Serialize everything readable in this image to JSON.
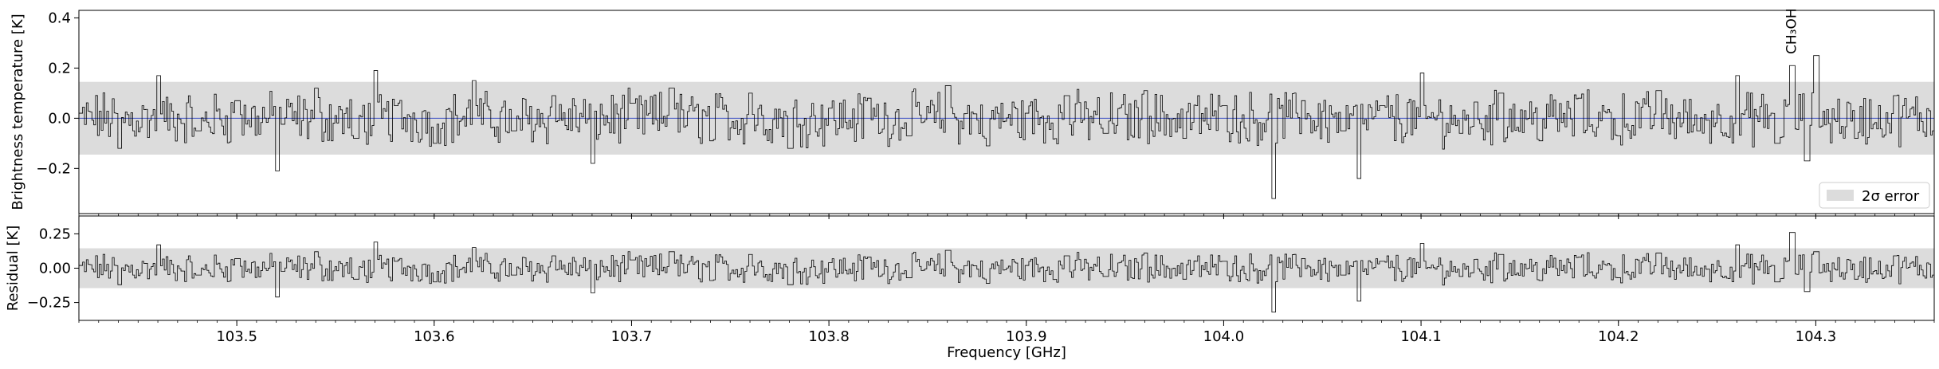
{
  "chart_data": [
    {
      "type": "line",
      "panel": "spectrum",
      "ylabel": "Brightness temperature [K]",
      "xlabel": "",
      "xlim": [
        103.42,
        104.36
      ],
      "ylim": [
        -0.38,
        0.43
      ],
      "yticks": [
        -0.2,
        0.0,
        0.2,
        0.4
      ],
      "ytick_labels": [
        "−0.2",
        "0.0",
        "0.2",
        "0.4"
      ],
      "xticks": [
        103.5,
        103.6,
        103.7,
        103.8,
        103.9,
        104.0,
        104.1,
        104.2,
        104.3
      ],
      "xtick_labels": [
        "103.5",
        "103.6",
        "103.7",
        "103.8",
        "103.9",
        "104.0",
        "104.1",
        "104.2",
        "104.3"
      ],
      "error_band": [
        -0.145,
        0.145
      ],
      "legend": {
        "entries": [
          "2σ error"
        ],
        "placement": "lower-right"
      },
      "annotations": [
        {
          "text": "CH₃OH",
          "x": 104.2875
        }
      ],
      "model_line_color": "#3b4fc4",
      "data_line_color": "#000000",
      "band_color": "#dcdcdc",
      "series": [
        {
          "sample_x": [
            103.42,
            103.44,
            103.46,
            103.48,
            103.5,
            103.52,
            103.54,
            103.56,
            103.57,
            103.58,
            103.6,
            103.62,
            103.64,
            103.66,
            103.68,
            103.7,
            103.72,
            103.74,
            103.76,
            103.78,
            103.8,
            103.82,
            103.84,
            103.86,
            103.88,
            103.9,
            103.92,
            103.94,
            103.96,
            103.98,
            104.0,
            104.025,
            104.04,
            104.06,
            104.068,
            104.08,
            104.1,
            104.12,
            104.14,
            104.16,
            104.18,
            104.2,
            104.22,
            104.24,
            104.26,
            104.28,
            104.2875,
            104.295,
            104.3,
            104.32,
            104.34,
            104.36
          ],
          "y": [
            0.02,
            -0.12,
            0.17,
            -0.05,
            0.07,
            -0.21,
            0.12,
            -0.08,
            0.19,
            0.05,
            -0.1,
            0.15,
            -0.05,
            0.09,
            -0.18,
            0.06,
            0.12,
            -0.09,
            0.1,
            -0.12,
            0.04,
            0.08,
            -0.07,
            0.13,
            -0.11,
            0.02,
            0.09,
            -0.06,
            0.11,
            -0.08,
            0.05,
            -0.32,
            0.07,
            -0.05,
            -0.24,
            0.05,
            0.18,
            -0.06,
            0.1,
            -0.09,
            0.08,
            -0.07,
            0.11,
            -0.05,
            0.17,
            -0.1,
            0.21,
            -0.17,
            0.25,
            -0.08,
            0.09,
            -0.05
          ]
        }
      ]
    },
    {
      "type": "line",
      "panel": "residual",
      "ylabel": "Residual [K]",
      "xlabel": "Frequency [GHz]",
      "xlim": [
        103.42,
        104.36
      ],
      "ylim": [
        -0.38,
        0.38
      ],
      "yticks": [
        -0.25,
        0.0,
        0.25
      ],
      "ytick_labels": [
        "−0.25",
        "0.00",
        "0.25"
      ],
      "xticks": [
        103.5,
        103.6,
        103.7,
        103.8,
        103.9,
        104.0,
        104.1,
        104.2,
        104.3
      ],
      "xtick_labels": [
        "103.5",
        "103.6",
        "103.7",
        "103.8",
        "103.9",
        "104.0",
        "104.1",
        "104.2",
        "104.3"
      ],
      "error_band": [
        -0.145,
        0.145
      ],
      "series": [
        {
          "sample_x": [
            103.42,
            103.44,
            103.46,
            103.48,
            103.5,
            103.52,
            103.54,
            103.56,
            103.57,
            103.58,
            103.6,
            103.62,
            103.64,
            103.66,
            103.68,
            103.7,
            103.72,
            103.74,
            103.76,
            103.78,
            103.8,
            103.82,
            103.84,
            103.86,
            103.88,
            103.9,
            103.92,
            103.94,
            103.96,
            103.98,
            104.0,
            104.025,
            104.04,
            104.06,
            104.068,
            104.08,
            104.1,
            104.12,
            104.14,
            104.16,
            104.18,
            104.2,
            104.22,
            104.24,
            104.26,
            104.28,
            104.2875,
            104.295,
            104.3,
            104.32,
            104.34,
            104.36
          ],
          "y": [
            0.02,
            -0.12,
            0.17,
            -0.05,
            0.07,
            -0.21,
            0.12,
            -0.08,
            0.19,
            0.05,
            -0.1,
            0.15,
            -0.05,
            0.09,
            -0.18,
            0.06,
            0.12,
            -0.09,
            0.1,
            -0.12,
            0.04,
            0.08,
            -0.07,
            0.13,
            -0.11,
            0.02,
            0.09,
            -0.06,
            0.11,
            -0.08,
            0.05,
            -0.32,
            0.07,
            -0.05,
            -0.24,
            0.05,
            0.18,
            -0.06,
            0.1,
            -0.09,
            0.08,
            -0.07,
            0.11,
            -0.05,
            0.17,
            -0.1,
            0.26,
            -0.17,
            0.12,
            -0.08,
            0.09,
            -0.05
          ]
        }
      ]
    }
  ]
}
